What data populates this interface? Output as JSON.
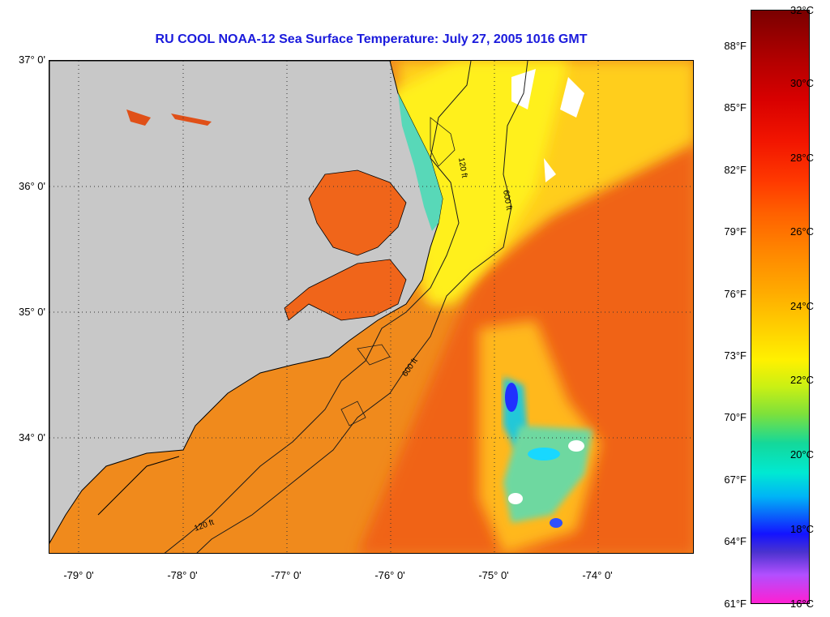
{
  "title": "RU COOL  NOAA-12  Sea Surface Temperature:  July 27, 2005 1016 GMT",
  "latitude_labels": [
    "37° 0'",
    "36° 0'",
    "35° 0'",
    "34° 0'"
  ],
  "longitude_labels": [
    "-79° 0'",
    "-78° 0'",
    "-77° 0'",
    "-76° 0'",
    "-75° 0'",
    "-74° 0'"
  ],
  "contour_labels": [
    "120 ft",
    "600 ft"
  ],
  "colorbar": {
    "celsius_labels": [
      "32°C",
      "30°C",
      "28°C",
      "26°C",
      "24°C",
      "22°C",
      "20°C",
      "18°C",
      "16°C"
    ],
    "fahrenheit_labels": [
      "88°F",
      "85°F",
      "82°F",
      "79°F",
      "76°F",
      "73°F",
      "70°F",
      "67°F",
      "64°F",
      "61°F"
    ]
  },
  "colors": {
    "land": "#c8c8c8",
    "title": "#1a1adc",
    "ocean_main": "#f08a1c",
    "gulf_stream": "#f06418",
    "shelf_cool": "#ffd21e",
    "cloud": "#ffffff"
  }
}
